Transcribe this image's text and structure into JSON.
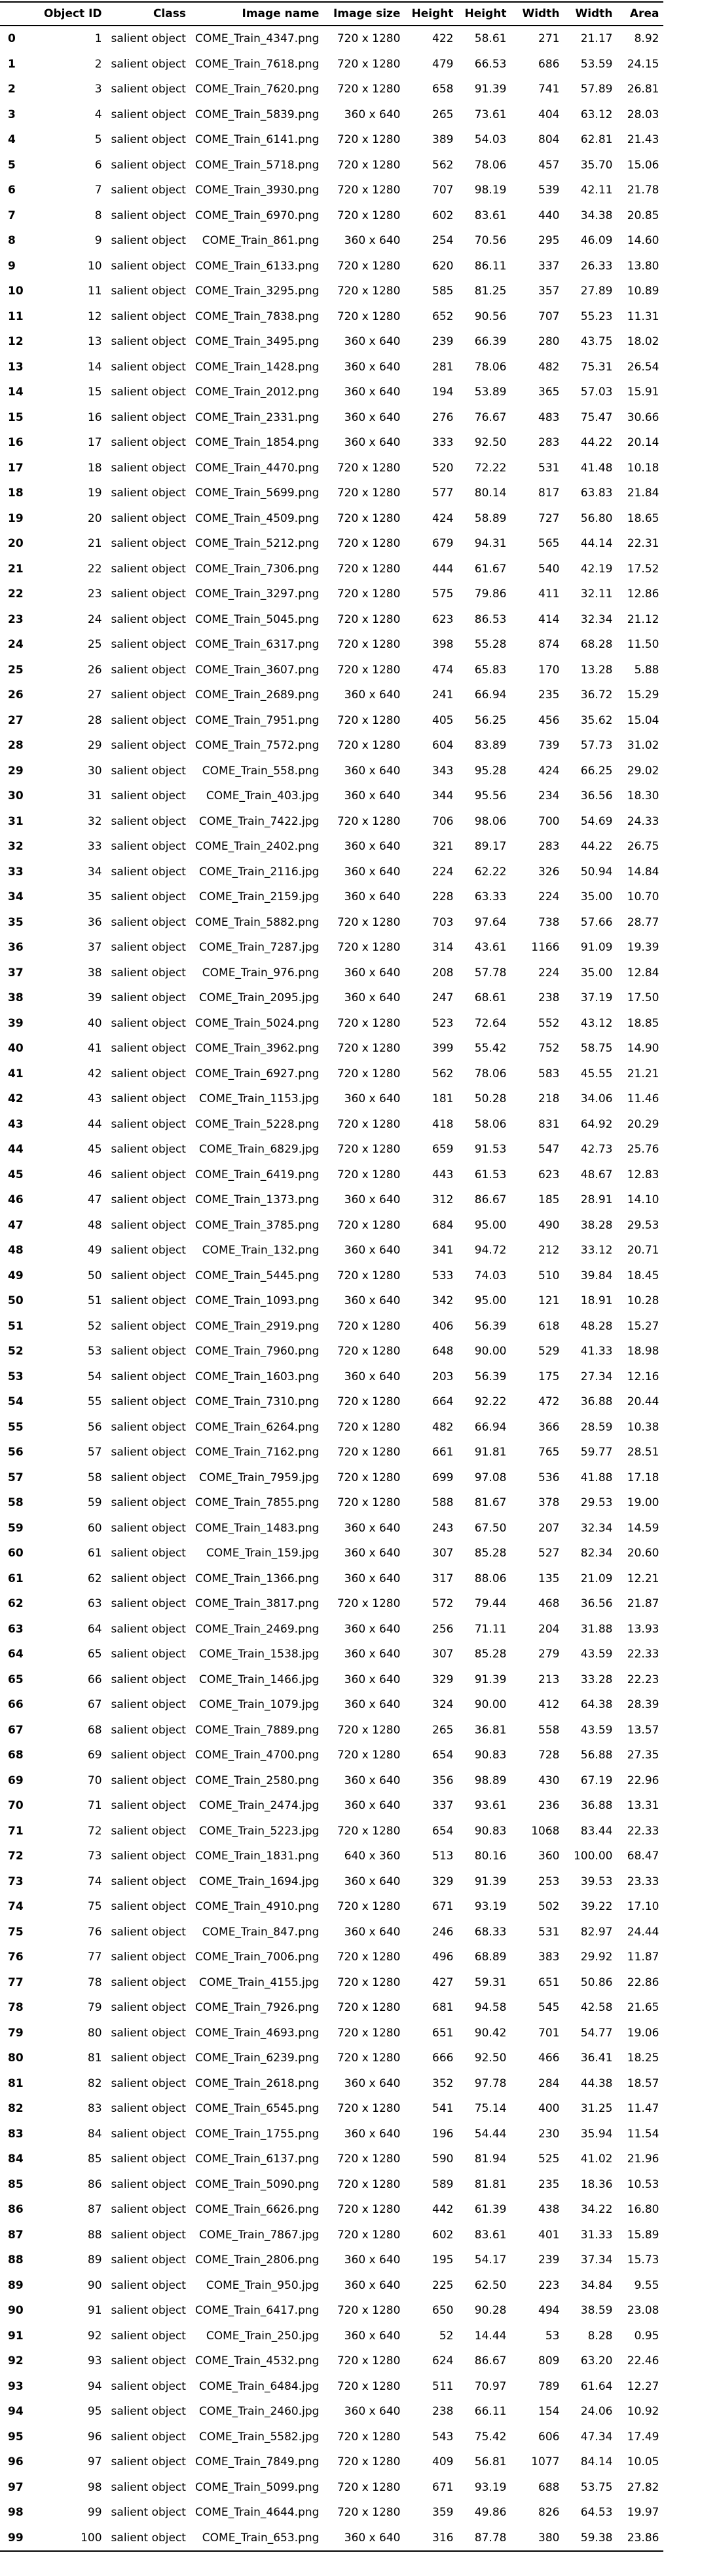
{
  "columns": [
    "",
    "Object ID",
    "Class",
    "Image name",
    "Image size",
    "Height",
    "Height",
    "Width",
    "Width",
    "Area"
  ],
  "rows": [
    [
      0,
      1,
      "salient object",
      "COME_Train_4347.png",
      "720 x 1280",
      422,
      "58.61",
      271,
      "21.17",
      "8.92"
    ],
    [
      1,
      2,
      "salient object",
      "COME_Train_7618.png",
      "720 x 1280",
      479,
      "66.53",
      686,
      "53.59",
      "24.15"
    ],
    [
      2,
      3,
      "salient object",
      "COME_Train_7620.png",
      "720 x 1280",
      658,
      "91.39",
      741,
      "57.89",
      "26.81"
    ],
    [
      3,
      4,
      "salient object",
      "COME_Train_5839.png",
      "360 x 640",
      265,
      "73.61",
      404,
      "63.12",
      "28.03"
    ],
    [
      4,
      5,
      "salient object",
      "COME_Train_6141.png",
      "720 x 1280",
      389,
      "54.03",
      804,
      "62.81",
      "21.43"
    ],
    [
      5,
      6,
      "salient object",
      "COME_Train_5718.png",
      "720 x 1280",
      562,
      "78.06",
      457,
      "35.70",
      "15.06"
    ],
    [
      6,
      7,
      "salient object",
      "COME_Train_3930.png",
      "720 x 1280",
      707,
      "98.19",
      539,
      "42.11",
      "21.78"
    ],
    [
      7,
      8,
      "salient object",
      "COME_Train_6970.png",
      "720 x 1280",
      602,
      "83.61",
      440,
      "34.38",
      "20.85"
    ],
    [
      8,
      9,
      "salient object",
      "COME_Train_861.png",
      "360 x 640",
      254,
      "70.56",
      295,
      "46.09",
      "14.60"
    ],
    [
      9,
      10,
      "salient object",
      "COME_Train_6133.png",
      "720 x 1280",
      620,
      "86.11",
      337,
      "26.33",
      "13.80"
    ],
    [
      10,
      11,
      "salient object",
      "COME_Train_3295.png",
      "720 x 1280",
      585,
      "81.25",
      357,
      "27.89",
      "10.89"
    ],
    [
      11,
      12,
      "salient object",
      "COME_Train_7838.png",
      "720 x 1280",
      652,
      "90.56",
      707,
      "55.23",
      "11.31"
    ],
    [
      12,
      13,
      "salient object",
      "COME_Train_3495.png",
      "360 x 640",
      239,
      "66.39",
      280,
      "43.75",
      "18.02"
    ],
    [
      13,
      14,
      "salient object",
      "COME_Train_1428.png",
      "360 x 640",
      281,
      "78.06",
      482,
      "75.31",
      "26.54"
    ],
    [
      14,
      15,
      "salient object",
      "COME_Train_2012.png",
      "360 x 640",
      194,
      "53.89",
      365,
      "57.03",
      "15.91"
    ],
    [
      15,
      16,
      "salient object",
      "COME_Train_2331.png",
      "360 x 640",
      276,
      "76.67",
      483,
      "75.47",
      "30.66"
    ],
    [
      16,
      17,
      "salient object",
      "COME_Train_1854.png",
      "360 x 640",
      333,
      "92.50",
      283,
      "44.22",
      "20.14"
    ],
    [
      17,
      18,
      "salient object",
      "COME_Train_4470.png",
      "720 x 1280",
      520,
      "72.22",
      531,
      "41.48",
      "10.18"
    ],
    [
      18,
      19,
      "salient object",
      "COME_Train_5699.png",
      "720 x 1280",
      577,
      "80.14",
      817,
      "63.83",
      "21.84"
    ],
    [
      19,
      20,
      "salient object",
      "COME_Train_4509.png",
      "720 x 1280",
      424,
      "58.89",
      727,
      "56.80",
      "18.65"
    ],
    [
      20,
      21,
      "salient object",
      "COME_Train_5212.png",
      "720 x 1280",
      679,
      "94.31",
      565,
      "44.14",
      "22.31"
    ],
    [
      21,
      22,
      "salient object",
      "COME_Train_7306.png",
      "720 x 1280",
      444,
      "61.67",
      540,
      "42.19",
      "17.52"
    ],
    [
      22,
      23,
      "salient object",
      "COME_Train_3297.png",
      "720 x 1280",
      575,
      "79.86",
      411,
      "32.11",
      "12.86"
    ],
    [
      23,
      24,
      "salient object",
      "COME_Train_5045.png",
      "720 x 1280",
      623,
      "86.53",
      414,
      "32.34",
      "21.12"
    ],
    [
      24,
      25,
      "salient object",
      "COME_Train_6317.png",
      "720 x 1280",
      398,
      "55.28",
      874,
      "68.28",
      "11.50"
    ],
    [
      25,
      26,
      "salient object",
      "COME_Train_3607.png",
      "720 x 1280",
      474,
      "65.83",
      170,
      "13.28",
      "5.88"
    ],
    [
      26,
      27,
      "salient object",
      "COME_Train_2689.png",
      "360 x 640",
      241,
      "66.94",
      235,
      "36.72",
      "15.29"
    ],
    [
      27,
      28,
      "salient object",
      "COME_Train_7951.png",
      "720 x 1280",
      405,
      "56.25",
      456,
      "35.62",
      "15.04"
    ],
    [
      28,
      29,
      "salient object",
      "COME_Train_7572.png",
      "720 x 1280",
      604,
      "83.89",
      739,
      "57.73",
      "31.02"
    ],
    [
      29,
      30,
      "salient object",
      "COME_Train_558.png",
      "360 x 640",
      343,
      "95.28",
      424,
      "66.25",
      "29.02"
    ],
    [
      30,
      31,
      "salient object",
      "COME_Train_403.jpg",
      "360 x 640",
      344,
      "95.56",
      234,
      "36.56",
      "18.30"
    ],
    [
      31,
      32,
      "salient object",
      "COME_Train_7422.jpg",
      "720 x 1280",
      706,
      "98.06",
      700,
      "54.69",
      "24.33"
    ],
    [
      32,
      33,
      "salient object",
      "COME_Train_2402.png",
      "360 x 640",
      321,
      "89.17",
      283,
      "44.22",
      "26.75"
    ],
    [
      33,
      34,
      "salient object",
      "COME_Train_2116.jpg",
      "360 x 640",
      224,
      "62.22",
      326,
      "50.94",
      "14.84"
    ],
    [
      34,
      35,
      "salient object",
      "COME_Train_2159.jpg",
      "360 x 640",
      228,
      "63.33",
      224,
      "35.00",
      "10.70"
    ],
    [
      35,
      36,
      "salient object",
      "COME_Train_5882.png",
      "720 x 1280",
      703,
      "97.64",
      738,
      "57.66",
      "28.77"
    ],
    [
      36,
      37,
      "salient object",
      "COME_Train_7287.jpg",
      "720 x 1280",
      314,
      "43.61",
      1166,
      "91.09",
      "19.39"
    ],
    [
      37,
      38,
      "salient object",
      "COME_Train_976.png",
      "360 x 640",
      208,
      "57.78",
      224,
      "35.00",
      "12.84"
    ],
    [
      38,
      39,
      "salient object",
      "COME_Train_2095.jpg",
      "360 x 640",
      247,
      "68.61",
      238,
      "37.19",
      "17.50"
    ],
    [
      39,
      40,
      "salient object",
      "COME_Train_5024.png",
      "720 x 1280",
      523,
      "72.64",
      552,
      "43.12",
      "18.85"
    ],
    [
      40,
      41,
      "salient object",
      "COME_Train_3962.png",
      "720 x 1280",
      399,
      "55.42",
      752,
      "58.75",
      "14.90"
    ],
    [
      41,
      42,
      "salient object",
      "COME_Train_6927.png",
      "720 x 1280",
      562,
      "78.06",
      583,
      "45.55",
      "21.21"
    ],
    [
      42,
      43,
      "salient object",
      "COME_Train_1153.jpg",
      "360 x 640",
      181,
      "50.28",
      218,
      "34.06",
      "11.46"
    ],
    [
      43,
      44,
      "salient object",
      "COME_Train_5228.png",
      "720 x 1280",
      418,
      "58.06",
      831,
      "64.92",
      "20.29"
    ],
    [
      44,
      45,
      "salient object",
      "COME_Train_6829.jpg",
      "720 x 1280",
      659,
      "91.53",
      547,
      "42.73",
      "25.76"
    ],
    [
      45,
      46,
      "salient object",
      "COME_Train_6419.png",
      "720 x 1280",
      443,
      "61.53",
      623,
      "48.67",
      "12.83"
    ],
    [
      46,
      47,
      "salient object",
      "COME_Train_1373.png",
      "360 x 640",
      312,
      "86.67",
      185,
      "28.91",
      "14.10"
    ],
    [
      47,
      48,
      "salient object",
      "COME_Train_3785.png",
      "720 x 1280",
      684,
      "95.00",
      490,
      "38.28",
      "29.53"
    ],
    [
      48,
      49,
      "salient object",
      "COME_Train_132.png",
      "360 x 640",
      341,
      "94.72",
      212,
      "33.12",
      "20.71"
    ],
    [
      49,
      50,
      "salient object",
      "COME_Train_5445.png",
      "720 x 1280",
      533,
      "74.03",
      510,
      "39.84",
      "18.45"
    ],
    [
      50,
      51,
      "salient object",
      "COME_Train_1093.png",
      "360 x 640",
      342,
      "95.00",
      121,
      "18.91",
      "10.28"
    ],
    [
      51,
      52,
      "salient object",
      "COME_Train_2919.png",
      "720 x 1280",
      406,
      "56.39",
      618,
      "48.28",
      "15.27"
    ],
    [
      52,
      53,
      "salient object",
      "COME_Train_7960.png",
      "720 x 1280",
      648,
      "90.00",
      529,
      "41.33",
      "18.98"
    ],
    [
      53,
      54,
      "salient object",
      "COME_Train_1603.png",
      "360 x 640",
      203,
      "56.39",
      175,
      "27.34",
      "12.16"
    ],
    [
      54,
      55,
      "salient object",
      "COME_Train_7310.png",
      "720 x 1280",
      664,
      "92.22",
      472,
      "36.88",
      "20.44"
    ],
    [
      55,
      56,
      "salient object",
      "COME_Train_6264.png",
      "720 x 1280",
      482,
      "66.94",
      366,
      "28.59",
      "10.38"
    ],
    [
      56,
      57,
      "salient object",
      "COME_Train_7162.png",
      "720 x 1280",
      661,
      "91.81",
      765,
      "59.77",
      "28.51"
    ],
    [
      57,
      58,
      "salient object",
      "COME_Train_7959.jpg",
      "720 x 1280",
      699,
      "97.08",
      536,
      "41.88",
      "17.18"
    ],
    [
      58,
      59,
      "salient object",
      "COME_Train_7855.png",
      "720 x 1280",
      588,
      "81.67",
      378,
      "29.53",
      "19.00"
    ],
    [
      59,
      60,
      "salient object",
      "COME_Train_1483.png",
      "360 x 640",
      243,
      "67.50",
      207,
      "32.34",
      "14.59"
    ],
    [
      60,
      61,
      "salient object",
      "COME_Train_159.jpg",
      "360 x 640",
      307,
      "85.28",
      527,
      "82.34",
      "20.60"
    ],
    [
      61,
      62,
      "salient object",
      "COME_Train_1366.png",
      "360 x 640",
      317,
      "88.06",
      135,
      "21.09",
      "12.21"
    ],
    [
      62,
      63,
      "salient object",
      "COME_Train_3817.png",
      "720 x 1280",
      572,
      "79.44",
      468,
      "36.56",
      "21.87"
    ],
    [
      63,
      64,
      "salient object",
      "COME_Train_2469.png",
      "360 x 640",
      256,
      "71.11",
      204,
      "31.88",
      "13.93"
    ],
    [
      64,
      65,
      "salient object",
      "COME_Train_1538.jpg",
      "360 x 640",
      307,
      "85.28",
      279,
      "43.59",
      "22.33"
    ],
    [
      65,
      66,
      "salient object",
      "COME_Train_1466.jpg",
      "360 x 640",
      329,
      "91.39",
      213,
      "33.28",
      "22.23"
    ],
    [
      66,
      67,
      "salient object",
      "COME_Train_1079.jpg",
      "360 x 640",
      324,
      "90.00",
      412,
      "64.38",
      "28.39"
    ],
    [
      67,
      68,
      "salient object",
      "COME_Train_7889.png",
      "720 x 1280",
      265,
      "36.81",
      558,
      "43.59",
      "13.57"
    ],
    [
      68,
      69,
      "salient object",
      "COME_Train_4700.png",
      "720 x 1280",
      654,
      "90.83",
      728,
      "56.88",
      "27.35"
    ],
    [
      69,
      70,
      "salient object",
      "COME_Train_2580.png",
      "360 x 640",
      356,
      "98.89",
      430,
      "67.19",
      "22.96"
    ],
    [
      70,
      71,
      "salient object",
      "COME_Train_2474.jpg",
      "360 x 640",
      337,
      "93.61",
      236,
      "36.88",
      "13.31"
    ],
    [
      71,
      72,
      "salient object",
      "COME_Train_5223.jpg",
      "720 x 1280",
      654,
      "90.83",
      1068,
      "83.44",
      "22.33"
    ],
    [
      72,
      73,
      "salient object",
      "COME_Train_1831.png",
      "640 x 360",
      513,
      "80.16",
      360,
      "100.00",
      "68.47"
    ],
    [
      73,
      74,
      "salient object",
      "COME_Train_1694.jpg",
      "360 x 640",
      329,
      "91.39",
      253,
      "39.53",
      "23.33"
    ],
    [
      74,
      75,
      "salient object",
      "COME_Train_4910.png",
      "720 x 1280",
      671,
      "93.19",
      502,
      "39.22",
      "17.10"
    ],
    [
      75,
      76,
      "salient object",
      "COME_Train_847.png",
      "360 x 640",
      246,
      "68.33",
      531,
      "82.97",
      "24.44"
    ],
    [
      76,
      77,
      "salient object",
      "COME_Train_7006.png",
      "720 x 1280",
      496,
      "68.89",
      383,
      "29.92",
      "11.87"
    ],
    [
      77,
      78,
      "salient object",
      "COME_Train_4155.jpg",
      "720 x 1280",
      427,
      "59.31",
      651,
      "50.86",
      "22.86"
    ],
    [
      78,
      79,
      "salient object",
      "COME_Train_7926.png",
      "720 x 1280",
      681,
      "94.58",
      545,
      "42.58",
      "21.65"
    ],
    [
      79,
      80,
      "salient object",
      "COME_Train_4693.png",
      "720 x 1280",
      651,
      "90.42",
      701,
      "54.77",
      "19.06"
    ],
    [
      80,
      81,
      "salient object",
      "COME_Train_6239.png",
      "720 x 1280",
      666,
      "92.50",
      466,
      "36.41",
      "18.25"
    ],
    [
      81,
      82,
      "salient object",
      "COME_Train_2618.png",
      "360 x 640",
      352,
      "97.78",
      284,
      "44.38",
      "18.57"
    ],
    [
      82,
      83,
      "salient object",
      "COME_Train_6545.png",
      "720 x 1280",
      541,
      "75.14",
      400,
      "31.25",
      "11.47"
    ],
    [
      83,
      84,
      "salient object",
      "COME_Train_1755.png",
      "360 x 640",
      196,
      "54.44",
      230,
      "35.94",
      "11.54"
    ],
    [
      84,
      85,
      "salient object",
      "COME_Train_6137.png",
      "720 x 1280",
      590,
      "81.94",
      525,
      "41.02",
      "21.96"
    ],
    [
      85,
      86,
      "salient object",
      "COME_Train_5090.png",
      "720 x 1280",
      589,
      "81.81",
      235,
      "18.36",
      "10.53"
    ],
    [
      86,
      87,
      "salient object",
      "COME_Train_6626.png",
      "720 x 1280",
      442,
      "61.39",
      438,
      "34.22",
      "16.80"
    ],
    [
      87,
      88,
      "salient object",
      "COME_Train_7867.jpg",
      "720 x 1280",
      602,
      "83.61",
      401,
      "31.33",
      "15.89"
    ],
    [
      88,
      89,
      "salient object",
      "COME_Train_2806.png",
      "360 x 640",
      195,
      "54.17",
      239,
      "37.34",
      "15.73"
    ],
    [
      89,
      90,
      "salient object",
      "COME_Train_950.jpg",
      "360 x 640",
      225,
      "62.50",
      223,
      "34.84",
      "9.55"
    ],
    [
      90,
      91,
      "salient object",
      "COME_Train_6417.png",
      "720 x 1280",
      650,
      "90.28",
      494,
      "38.59",
      "23.08"
    ],
    [
      91,
      92,
      "salient object",
      "COME_Train_250.jpg",
      "360 x 640",
      52,
      "14.44",
      53,
      "8.28",
      "0.95"
    ],
    [
      92,
      93,
      "salient object",
      "COME_Train_4532.png",
      "720 x 1280",
      624,
      "86.67",
      809,
      "63.20",
      "22.46"
    ],
    [
      93,
      94,
      "salient object",
      "COME_Train_6484.jpg",
      "720 x 1280",
      511,
      "70.97",
      789,
      "61.64",
      "12.27"
    ],
    [
      94,
      95,
      "salient object",
      "COME_Train_2460.jpg",
      "360 x 640",
      238,
      "66.11",
      154,
      "24.06",
      "10.92"
    ],
    [
      95,
      96,
      "salient object",
      "COME_Train_5582.jpg",
      "720 x 1280",
      543,
      "75.42",
      606,
      "47.34",
      "17.49"
    ],
    [
      96,
      97,
      "salient object",
      "COME_Train_7849.png",
      "720 x 1280",
      409,
      "56.81",
      1077,
      "84.14",
      "10.05"
    ],
    [
      97,
      98,
      "salient object",
      "COME_Train_5099.png",
      "720 x 1280",
      671,
      "93.19",
      688,
      "53.75",
      "27.82"
    ],
    [
      98,
      99,
      "salient object",
      "COME_Train_4644.png",
      "720 x 1280",
      359,
      "49.86",
      826,
      "64.53",
      "19.97"
    ],
    [
      99,
      100,
      "salient object",
      "COME_Train_653.png",
      "360 x 640",
      316,
      "87.78",
      380,
      "59.38",
      "23.86"
    ]
  ]
}
